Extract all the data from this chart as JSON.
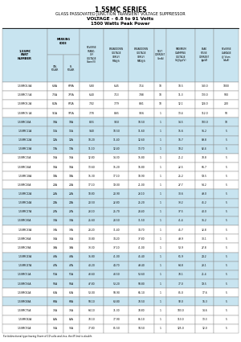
{
  "title1": "1.5SMC SERIES",
  "title2": "GLASS PASSOVATED JUNCTION TRANSIENT VOLTAGE SUPPRESSOR",
  "title3": "VOLTAGE - 6.8 to 91 Volts",
  "title4": "1500 Watts Peak Power",
  "rows": [
    [
      "1.5SMC6.8A",
      "6.8A",
      "6P8A",
      "6P8A*",
      "5.80",
      "6.45",
      "7.14",
      "10",
      "10.5",
      "143.0",
      "1000"
    ],
    [
      "1.5SMC7.5A",
      "7.5A",
      "7P5A",
      "7P5A*",
      "6.40",
      "7.13",
      "7.88",
      "10",
      "11.3",
      "133.0",
      "500"
    ],
    [
      "1.5SMC8.2A",
      "8.2A",
      "8P2A",
      "8P2A*",
      "7.02",
      "7.79",
      "8.61",
      "10",
      "12.1",
      "124.0",
      "200"
    ],
    [
      "1.5SMC9.1A",
      "9.1A",
      "9P1A",
      "9P1A*",
      "7.78",
      "8.65",
      "9.56",
      "1",
      "13.4",
      "112.0",
      "50"
    ],
    [
      "1.5SMC10A",
      "10A",
      "10A",
      "10C",
      "8.55",
      "9.50",
      "10.50",
      "1",
      "14.5",
      "103.0",
      "10"
    ],
    [
      "1.5SMC11A",
      "11A",
      "11A",
      "11C",
      "9.40",
      "10.50",
      "11.60",
      "1",
      "15.6",
      "96.2",
      "5"
    ],
    [
      "1.5SMC12A",
      "12A",
      "12A",
      "12C",
      "10.20",
      "11.40",
      "12.60",
      "1",
      "16.7",
      "89.8",
      "5"
    ],
    [
      "1.5SMC13A",
      "13A",
      "13A",
      "13C",
      "11.10",
      "12.40",
      "13.70",
      "1",
      "18.2",
      "82.4",
      "5"
    ],
    [
      "1.5SMC15A",
      "15A",
      "15A",
      "15C",
      "12.80",
      "14.30",
      "15.80",
      "1",
      "21.2",
      "70.8",
      "5"
    ],
    [
      "1.5SMC16A",
      "16A",
      "16A",
      "16C",
      "13.60",
      "15.20",
      "16.80",
      "1",
      "22.5",
      "66.7",
      "5"
    ],
    [
      "1.5SMC18A",
      "18A",
      "18A",
      "18C",
      "15.30",
      "17.10",
      "18.90",
      "1",
      "25.2",
      "59.5",
      "5"
    ],
    [
      "1.5SMC20A",
      "20A",
      "20A",
      "20C",
      "17.10",
      "19.00",
      "21.00",
      "1",
      "27.7",
      "54.2",
      "5"
    ],
    [
      "1.5SMC22A",
      "22A",
      "22A",
      "22C",
      "18.80",
      "20.90",
      "23.10",
      "1",
      "30.6",
      "49.0",
      "5"
    ],
    [
      "1.5SMC24A",
      "24A",
      "24A",
      "24C",
      "20.50",
      "22.80",
      "25.20",
      "1",
      "33.2",
      "45.2",
      "5"
    ],
    [
      "1.5SMC27A",
      "27A",
      "27A",
      "27C",
      "23.10",
      "25.70",
      "28.40",
      "1",
      "37.5",
      "40.0",
      "5"
    ],
    [
      "1.5SMC30A",
      "30A",
      "30A",
      "30C",
      "25.60",
      "28.50",
      "31.50",
      "1",
      "41.4",
      "36.2",
      "5"
    ],
    [
      "1.5SMC33A",
      "33A",
      "33A",
      "33C",
      "28.20",
      "31.40",
      "34.70",
      "1",
      "45.7",
      "32.8",
      "5"
    ],
    [
      "1.5SMC36A",
      "36A",
      "36A",
      "36C",
      "30.80",
      "34.20",
      "37.80",
      "1",
      "49.9",
      "30.1",
      "5"
    ],
    [
      "1.5SMC39A",
      "39A",
      "39A",
      "39C",
      "33.30",
      "37.10",
      "41.00",
      "1",
      "53.9",
      "27.8",
      "5"
    ],
    [
      "1.5SMC43A",
      "43A",
      "43A",
      "43C",
      "36.80",
      "41.00",
      "45.40",
      "1",
      "61.9",
      "24.2",
      "5"
    ],
    [
      "1.5SMC47A",
      "47A",
      "47A",
      "47C",
      "40.20",
      "44.70",
      "49.40",
      "1",
      "64.8",
      "23.1",
      "5"
    ],
    [
      "1.5SMC51A",
      "51A",
      "51A",
      "51C",
      "43.60",
      "48.50",
      "53.60",
      "1",
      "70.1",
      "21.4",
      "5"
    ],
    [
      "1.5SMC56A",
      "56A",
      "56A",
      "56C",
      "47.80",
      "53.20",
      "58.80",
      "1",
      "77.0",
      "19.5",
      "5"
    ],
    [
      "1.5SMC62A",
      "62A",
      "62A",
      "62C",
      "53.00",
      "58.90",
      "65.10",
      "1",
      "85.0",
      "17.6",
      "5"
    ],
    [
      "1.5SMC68A",
      "68A",
      "68A",
      "68C",
      "58.10",
      "63.80",
      "70.50",
      "1",
      "92.0",
      "16.3",
      "5"
    ],
    [
      "1.5SMC75A",
      "75A",
      "75A",
      "75C",
      "64.10",
      "71.30",
      "78.80",
      "1",
      "103.0",
      "14.6",
      "5"
    ],
    [
      "1.5SMC82A",
      "82A",
      "82A",
      "82C",
      "70.10",
      "77.90",
      "86.10",
      "1",
      "113.0",
      "13.3",
      "5"
    ],
    [
      "1.5SMC91A",
      "91A",
      "91A",
      "91C",
      "77.80",
      "85.50",
      "94.50",
      "1",
      "125.0",
      "12.0",
      "5"
    ]
  ],
  "footer": "For bidirectional type having Vrwm of 10 volts and less, the IR limit is double.",
  "bg_white": "#ffffff",
  "bg_blue": "#c8e4f0",
  "border_color": "#888888",
  "text_color": "#000000",
  "row_band_pattern": [
    0,
    0,
    0,
    0,
    1,
    1,
    1,
    1,
    0,
    0,
    0,
    0,
    1,
    1,
    1,
    1,
    0,
    0,
    0,
    1,
    1,
    1,
    1,
    0,
    1,
    0,
    0,
    0
  ]
}
